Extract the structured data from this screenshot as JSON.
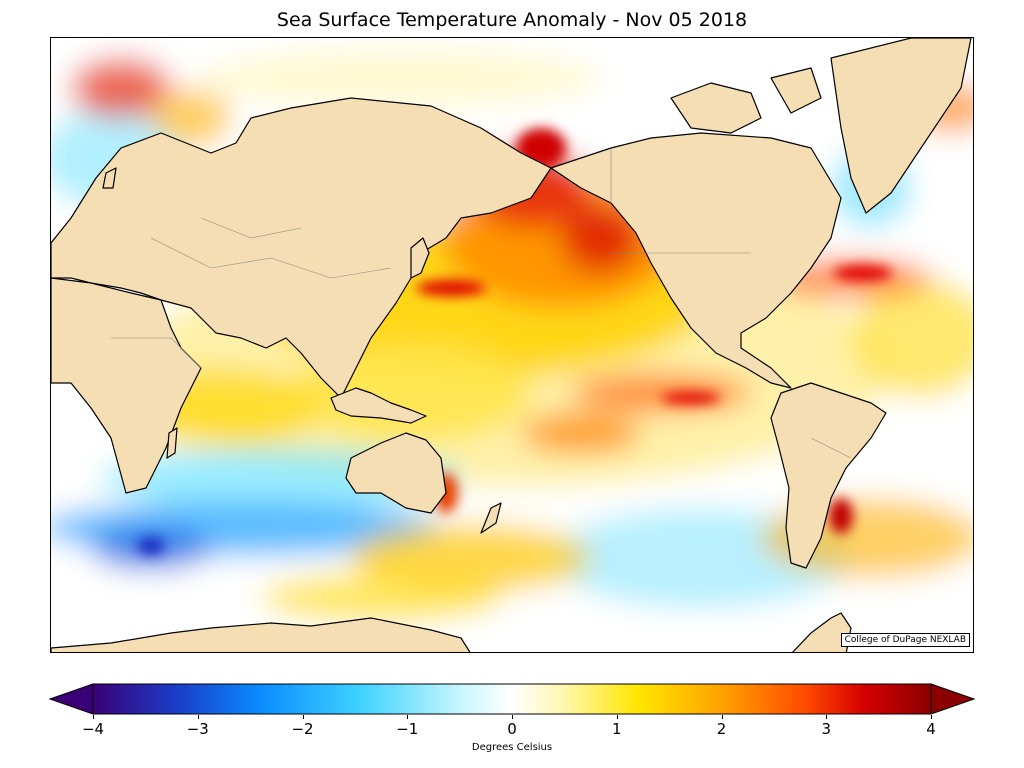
{
  "title": "Sea Surface Temperature Anomaly - Nov 05 2018",
  "credit": "College of DuPage NEXLAB",
  "colorbar": {
    "label": "Degrees Celsius",
    "range": [
      -4,
      4
    ],
    "ticks": [
      "−4",
      "−3",
      "−2",
      "−1",
      "0",
      "1",
      "2",
      "3",
      "4"
    ],
    "extend": "both",
    "colors": [
      "#3a0077",
      "#1a3dc8",
      "#0a8cff",
      "#3fd3ff",
      "#c8f6ff",
      "#ffffff",
      "#fff7b0",
      "#ffe600",
      "#ffa200",
      "#ff4a00",
      "#d60000",
      "#8b0000"
    ]
  },
  "colors": {
    "land": "#f5deb3",
    "coastline": "#000000",
    "borders": "#888888"
  }
}
